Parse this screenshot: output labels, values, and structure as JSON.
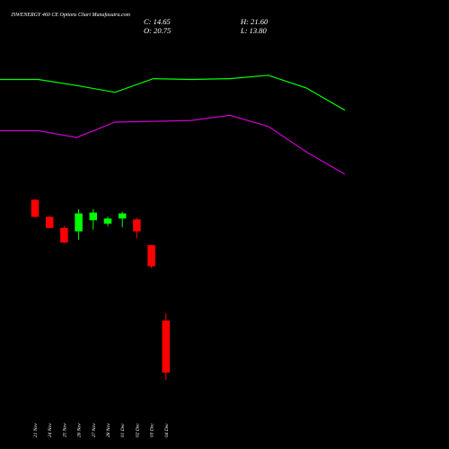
{
  "header": {
    "title": "JSWENERGY 460  CE Options  Chart Munafasutra.com",
    "close_text": "C: 14.65",
    "open_text": "O: 20.75",
    "high_text": "H: 21.60",
    "low_text": "L: 13.80"
  },
  "chart_data": {
    "type": "candlestick",
    "background": "#000000",
    "colors": {
      "up": "#00ff00",
      "down": "#ff0000",
      "upper_line": "#00ff00",
      "lower_line": "#cc00cc"
    },
    "ylim": [
      12,
      52
    ],
    "categories": [
      "21 Nov",
      "24 Nov",
      "25 Nov",
      "26 Nov",
      "27 Nov",
      "28 Nov",
      "01 Dec",
      "02 Dec",
      "03 Dec",
      "04 Dec"
    ],
    "candles": [
      {
        "date": "21 Nov",
        "open": 34.9,
        "high": 35.0,
        "low": 32.8,
        "close": 32.9
      },
      {
        "date": "24 Nov",
        "open": 32.9,
        "high": 33.0,
        "low": 31.5,
        "close": 31.6
      },
      {
        "date": "25 Nov",
        "open": 31.6,
        "high": 31.8,
        "low": 29.8,
        "close": 29.9
      },
      {
        "date": "26 Nov",
        "open": 31.2,
        "high": 33.8,
        "low": 30.2,
        "close": 33.3
      },
      {
        "date": "27 Nov",
        "open": 32.5,
        "high": 33.8,
        "low": 31.4,
        "close": 33.4
      },
      {
        "date": "28 Nov",
        "open": 32.1,
        "high": 32.9,
        "low": 31.8,
        "close": 32.7
      },
      {
        "date": "01 Dec",
        "open": 32.7,
        "high": 33.5,
        "low": 31.7,
        "close": 33.3
      },
      {
        "date": "02 Dec",
        "open": 32.6,
        "high": 32.8,
        "low": 30.4,
        "close": 31.2
      },
      {
        "date": "03 Dec",
        "open": 29.6,
        "high": 29.6,
        "low": 26.9,
        "close": 27.1
      },
      {
        "date": "04 Dec",
        "open": 20.75,
        "high": 21.6,
        "low": 13.8,
        "close": 14.65
      }
    ],
    "upper_line": {
      "x": [
        "21 Nov",
        "24 Nov",
        "25 Nov",
        "26 Nov",
        "27 Nov",
        "28 Nov",
        "01 Dec",
        "02 Dec",
        "03 Dec",
        "04 Dec"
      ],
      "values": [
        49.0,
        49.0,
        48.3,
        47.5,
        49.1,
        49.0,
        49.1,
        49.5,
        48.0,
        45.4
      ]
    },
    "lower_line": {
      "x": [
        "21 Nov",
        "24 Nov",
        "25 Nov",
        "26 Nov",
        "27 Nov",
        "28 Nov",
        "01 Dec",
        "02 Dec",
        "03 Dec",
        "04 Dec"
      ],
      "values": [
        43.0,
        43.0,
        42.2,
        44.0,
        44.1,
        44.2,
        44.8,
        43.5,
        40.5,
        37.9
      ]
    },
    "grid": false,
    "legend": "none"
  }
}
